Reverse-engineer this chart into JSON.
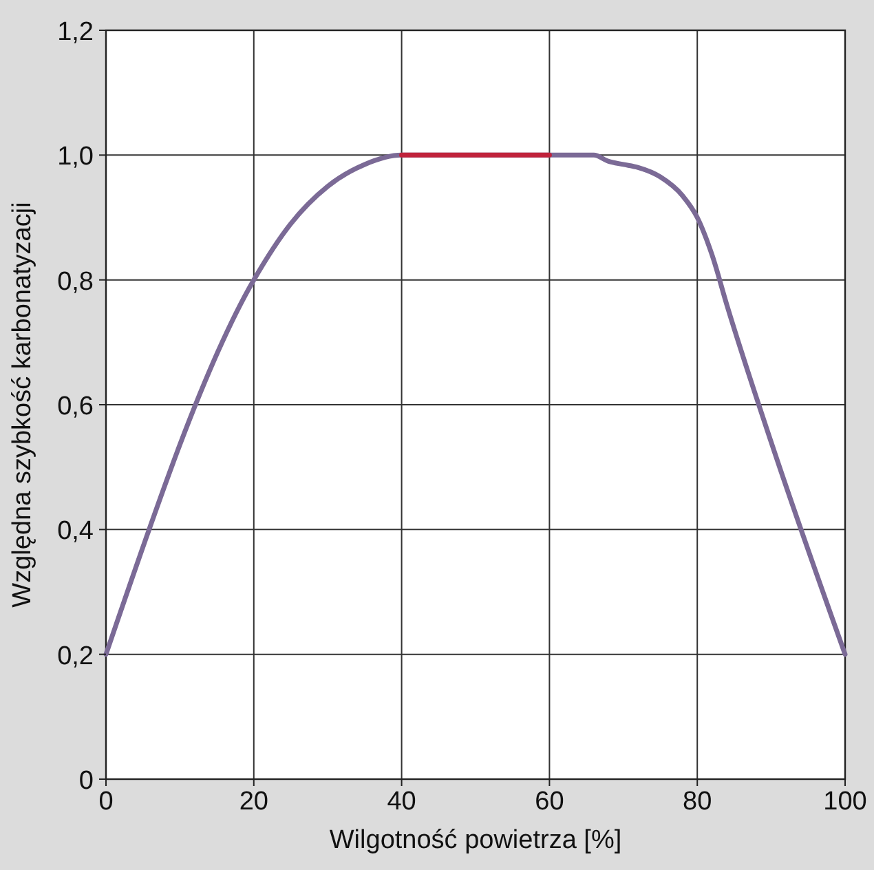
{
  "chart_data": {
    "type": "line",
    "xlabel": "Wilgotność powietrza [%]",
    "ylabel": "Względna szybkość karbonatyzacji",
    "xlim": [
      0,
      100
    ],
    "xticks": [
      0,
      20,
      40,
      60,
      80,
      100
    ],
    "ylim": [
      0,
      1.2
    ],
    "yticks": [
      0,
      {
        "value": 0.2,
        "label": "0,2"
      },
      {
        "value": 0.4,
        "label": "0,4"
      },
      {
        "value": 0.6,
        "label": "0,6"
      },
      {
        "value": 0.8,
        "label": "0,8"
      },
      {
        "value": 1.0,
        "label": "1,0"
      },
      {
        "value": 1.2,
        "label": "1,2"
      }
    ],
    "grid": true,
    "line_style": "solid",
    "marker": "none",
    "series": [
      {
        "color": "#7b6a96",
        "x": [
          0,
          20,
          25,
          30,
          35,
          40,
          60,
          66,
          68,
          70,
          72,
          75,
          78,
          80,
          82,
          84,
          90,
          100
        ],
        "values": [
          0.2,
          0.8,
          0.89,
          0.95,
          0.985,
          1.0,
          1.0,
          1.0,
          0.99,
          0.985,
          0.98,
          0.965,
          0.935,
          0.9,
          0.84,
          0.76,
          0.54,
          0.2
        ]
      },
      {
        "color": "#c0223b",
        "x": [
          40,
          60
        ],
        "values": [
          1.0,
          1.0
        ]
      }
    ]
  }
}
